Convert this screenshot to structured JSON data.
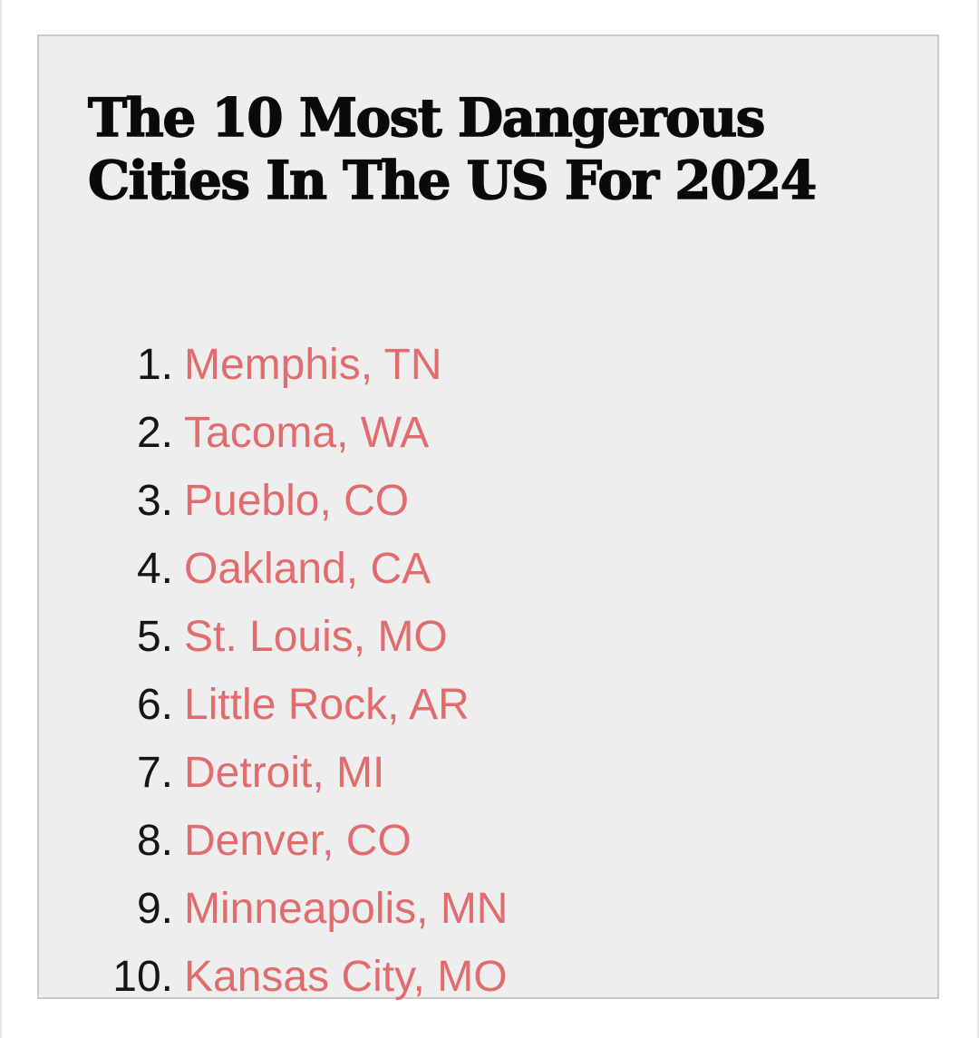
{
  "article": {
    "title": "The 10 Most Dangerous Cities In The US For 2024",
    "link_color": "#e06c6e",
    "items": [
      {
        "number": "1.",
        "city": "Memphis, TN"
      },
      {
        "number": "2.",
        "city": "Tacoma, WA"
      },
      {
        "number": "3.",
        "city": "Pueblo, CO"
      },
      {
        "number": "4.",
        "city": "Oakland, CA"
      },
      {
        "number": "5.",
        "city": "St. Louis, MO"
      },
      {
        "number": "6.",
        "city": "Little Rock, AR"
      },
      {
        "number": "7.",
        "city": "Detroit, MI"
      },
      {
        "number": "8.",
        "city": "Denver, CO"
      },
      {
        "number": "9.",
        "city": "Minneapolis, MN"
      },
      {
        "number": "10.",
        "city": "Kansas City, MO"
      }
    ]
  }
}
